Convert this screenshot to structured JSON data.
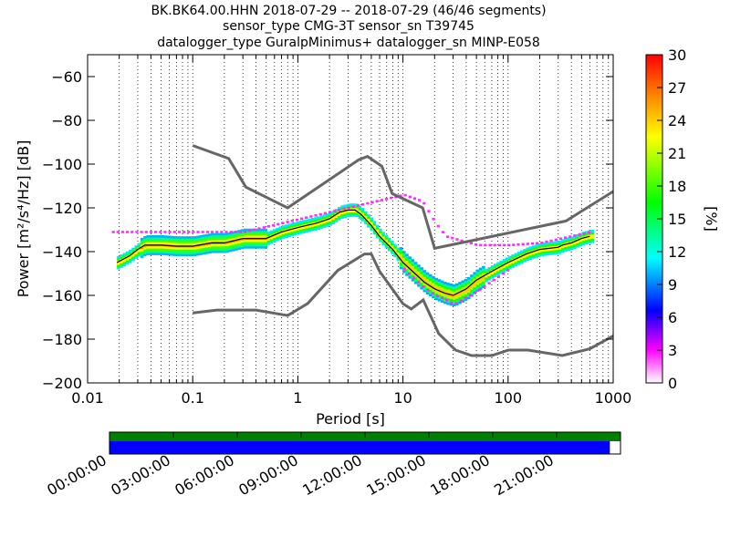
{
  "chart_data": {
    "type": "ppsd",
    "title_lines": [
      "BK.BK64.00.HHN   2018-07-29 -- 2018-07-29  (46/46 segments)",
      "sensor_type CMG-3T sensor_sn T39745",
      "datalogger_type GuralpMinimus+ datalogger_sn MINP-E058"
    ],
    "xlabel": "Period [s]",
    "ylabel": "Power [m²/s⁴/Hz] [dB]",
    "x_scale": "log",
    "xlim": [
      0.01,
      1000
    ],
    "ylim": [
      -200,
      -50
    ],
    "x_tick_labels": [
      "0.01",
      "0.1",
      "1",
      "10",
      "100",
      "1000"
    ],
    "x_tick_values": [
      0.01,
      0.1,
      1,
      10,
      100,
      1000
    ],
    "y_tick_labels": [
      "−200",
      "−180",
      "−160",
      "−140",
      "−120",
      "−100",
      "−80",
      "−60"
    ],
    "y_tick_values": [
      -200,
      -180,
      -160,
      -140,
      -120,
      -100,
      -80,
      -60
    ],
    "grid": "dotted",
    "colorbar": {
      "label": "[%]",
      "range": [
        0,
        30
      ],
      "tick_labels": [
        "0",
        "3",
        "6",
        "9",
        "12",
        "15",
        "18",
        "21",
        "24",
        "27",
        "30"
      ],
      "tick_values": [
        0,
        3,
        6,
        9,
        12,
        15,
        18,
        21,
        24,
        27,
        30
      ],
      "colormap": "pqlx"
    },
    "noise_models": {
      "nhnm": {
        "x": [
          0.1,
          0.22,
          0.32,
          0.8,
          3.8,
          4.6,
          6.3,
          7.9,
          15.4,
          20,
          354.8,
          1000
        ],
        "y": [
          -91.5,
          -97.4,
          -110.5,
          -120,
          -98,
          -96.5,
          -101,
          -113.5,
          -120,
          -138.5,
          -126,
          -112.5
        ]
      },
      "nlnm": {
        "x": [
          0.1,
          0.17,
          0.4,
          0.8,
          1.24,
          2.4,
          4.3,
          5,
          6,
          10,
          12,
          15.6,
          21.9,
          31.6,
          45,
          70,
          101,
          154,
          328,
          600,
          1000
        ],
        "y": [
          -168,
          -166.7,
          -166.7,
          -169.2,
          -163.7,
          -148.6,
          -141.1,
          -141.1,
          -149,
          -163.8,
          -166.2,
          -162.1,
          -177.5,
          -185,
          -187.5,
          -187.5,
          -185,
          -185,
          -187.5,
          -184.4,
          -178.5
        ]
      }
    },
    "mode_curve": {
      "x": [
        0.019,
        0.025,
        0.03,
        0.035,
        0.05,
        0.07,
        0.1,
        0.15,
        0.2,
        0.3,
        0.5,
        0.7,
        1,
        1.5,
        2,
        2.5,
        3,
        3.5,
        4,
        5,
        6,
        8,
        10,
        13,
        16,
        20,
        25,
        30,
        40,
        50,
        70,
        100,
        150,
        200,
        300,
        330,
        400,
        500,
        600
      ],
      "y": [
        -145,
        -142,
        -139,
        -137,
        -137,
        -137.5,
        -137.5,
        -136,
        -136,
        -134,
        -134,
        -131,
        -129,
        -127,
        -125,
        -122,
        -121,
        -121,
        -123,
        -128,
        -133,
        -139,
        -145,
        -150,
        -154,
        -157,
        -159,
        -160,
        -157,
        -153,
        -149,
        -145,
        -141,
        -139,
        -138,
        -137,
        -136,
        -134,
        -133
      ]
    },
    "bands": [
      {
        "name": "nhnm-swell",
        "x": [
          0.017,
          0.3,
          10,
          15,
          20,
          25,
          50,
          100,
          200,
          600
        ],
        "y": [
          -131,
          -131,
          -114,
          -117,
          -127,
          -133,
          -137,
          -137,
          -136,
          -131
        ]
      },
      {
        "name": "low-tail",
        "x": [
          10,
          13,
          16,
          20,
          25,
          30,
          50,
          100
        ],
        "y": [
          -148,
          -153,
          -157,
          -160,
          -162,
          -164,
          -158,
          -148
        ]
      }
    ],
    "time_coverage": {
      "tick_labels": [
        "00:00:00",
        "03:00:00",
        "06:00:00",
        "09:00:00",
        "12:00:00",
        "15:00:00",
        "18:00:00",
        "21:00:00"
      ],
      "tick_hours": [
        0,
        3,
        6,
        9,
        12,
        15,
        18,
        21
      ],
      "range_hours": [
        0,
        24
      ],
      "data_coverage": [
        [
          0,
          24
        ]
      ],
      "processed_coverage": [
        [
          0,
          23.5
        ]
      ],
      "colors": {
        "data": "#008000",
        "processed": "#0000ff"
      }
    }
  }
}
